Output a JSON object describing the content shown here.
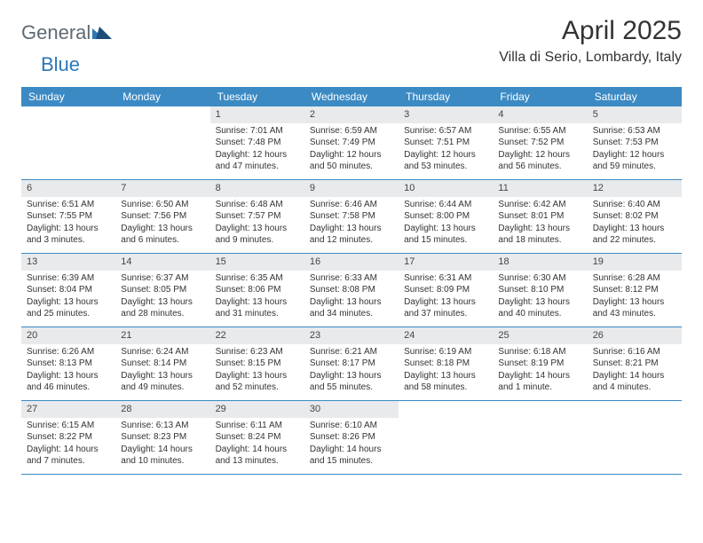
{
  "brand": {
    "text1": "General",
    "text2": "Blue"
  },
  "title": "April 2025",
  "location": "Villa di Serio, Lombardy, Italy",
  "colors": {
    "header_bg": "#3b8ac4",
    "header_text": "#ffffff",
    "daynum_bg": "#e8eaec",
    "row_border": "#3b8ac4",
    "text": "#333333",
    "logo_gray": "#5f6a72",
    "logo_blue": "#2a78b8"
  },
  "dayHeaders": [
    "Sunday",
    "Monday",
    "Tuesday",
    "Wednesday",
    "Thursday",
    "Friday",
    "Saturday"
  ],
  "weeks": [
    [
      null,
      null,
      {
        "n": 1,
        "sr": "7:01 AM",
        "ss": "7:48 PM",
        "dl": "12 hours and 47 minutes."
      },
      {
        "n": 2,
        "sr": "6:59 AM",
        "ss": "7:49 PM",
        "dl": "12 hours and 50 minutes."
      },
      {
        "n": 3,
        "sr": "6:57 AM",
        "ss": "7:51 PM",
        "dl": "12 hours and 53 minutes."
      },
      {
        "n": 4,
        "sr": "6:55 AM",
        "ss": "7:52 PM",
        "dl": "12 hours and 56 minutes."
      },
      {
        "n": 5,
        "sr": "6:53 AM",
        "ss": "7:53 PM",
        "dl": "12 hours and 59 minutes."
      }
    ],
    [
      {
        "n": 6,
        "sr": "6:51 AM",
        "ss": "7:55 PM",
        "dl": "13 hours and 3 minutes."
      },
      {
        "n": 7,
        "sr": "6:50 AM",
        "ss": "7:56 PM",
        "dl": "13 hours and 6 minutes."
      },
      {
        "n": 8,
        "sr": "6:48 AM",
        "ss": "7:57 PM",
        "dl": "13 hours and 9 minutes."
      },
      {
        "n": 9,
        "sr": "6:46 AM",
        "ss": "7:58 PM",
        "dl": "13 hours and 12 minutes."
      },
      {
        "n": 10,
        "sr": "6:44 AM",
        "ss": "8:00 PM",
        "dl": "13 hours and 15 minutes."
      },
      {
        "n": 11,
        "sr": "6:42 AM",
        "ss": "8:01 PM",
        "dl": "13 hours and 18 minutes."
      },
      {
        "n": 12,
        "sr": "6:40 AM",
        "ss": "8:02 PM",
        "dl": "13 hours and 22 minutes."
      }
    ],
    [
      {
        "n": 13,
        "sr": "6:39 AM",
        "ss": "8:04 PM",
        "dl": "13 hours and 25 minutes."
      },
      {
        "n": 14,
        "sr": "6:37 AM",
        "ss": "8:05 PM",
        "dl": "13 hours and 28 minutes."
      },
      {
        "n": 15,
        "sr": "6:35 AM",
        "ss": "8:06 PM",
        "dl": "13 hours and 31 minutes."
      },
      {
        "n": 16,
        "sr": "6:33 AM",
        "ss": "8:08 PM",
        "dl": "13 hours and 34 minutes."
      },
      {
        "n": 17,
        "sr": "6:31 AM",
        "ss": "8:09 PM",
        "dl": "13 hours and 37 minutes."
      },
      {
        "n": 18,
        "sr": "6:30 AM",
        "ss": "8:10 PM",
        "dl": "13 hours and 40 minutes."
      },
      {
        "n": 19,
        "sr": "6:28 AM",
        "ss": "8:12 PM",
        "dl": "13 hours and 43 minutes."
      }
    ],
    [
      {
        "n": 20,
        "sr": "6:26 AM",
        "ss": "8:13 PM",
        "dl": "13 hours and 46 minutes."
      },
      {
        "n": 21,
        "sr": "6:24 AM",
        "ss": "8:14 PM",
        "dl": "13 hours and 49 minutes."
      },
      {
        "n": 22,
        "sr": "6:23 AM",
        "ss": "8:15 PM",
        "dl": "13 hours and 52 minutes."
      },
      {
        "n": 23,
        "sr": "6:21 AM",
        "ss": "8:17 PM",
        "dl": "13 hours and 55 minutes."
      },
      {
        "n": 24,
        "sr": "6:19 AM",
        "ss": "8:18 PM",
        "dl": "13 hours and 58 minutes."
      },
      {
        "n": 25,
        "sr": "6:18 AM",
        "ss": "8:19 PM",
        "dl": "14 hours and 1 minute."
      },
      {
        "n": 26,
        "sr": "6:16 AM",
        "ss": "8:21 PM",
        "dl": "14 hours and 4 minutes."
      }
    ],
    [
      {
        "n": 27,
        "sr": "6:15 AM",
        "ss": "8:22 PM",
        "dl": "14 hours and 7 minutes."
      },
      {
        "n": 28,
        "sr": "6:13 AM",
        "ss": "8:23 PM",
        "dl": "14 hours and 10 minutes."
      },
      {
        "n": 29,
        "sr": "6:11 AM",
        "ss": "8:24 PM",
        "dl": "14 hours and 13 minutes."
      },
      {
        "n": 30,
        "sr": "6:10 AM",
        "ss": "8:26 PM",
        "dl": "14 hours and 15 minutes."
      },
      null,
      null,
      null
    ]
  ],
  "labels": {
    "sunrise": "Sunrise:",
    "sunset": "Sunset:",
    "daylight": "Daylight:"
  }
}
